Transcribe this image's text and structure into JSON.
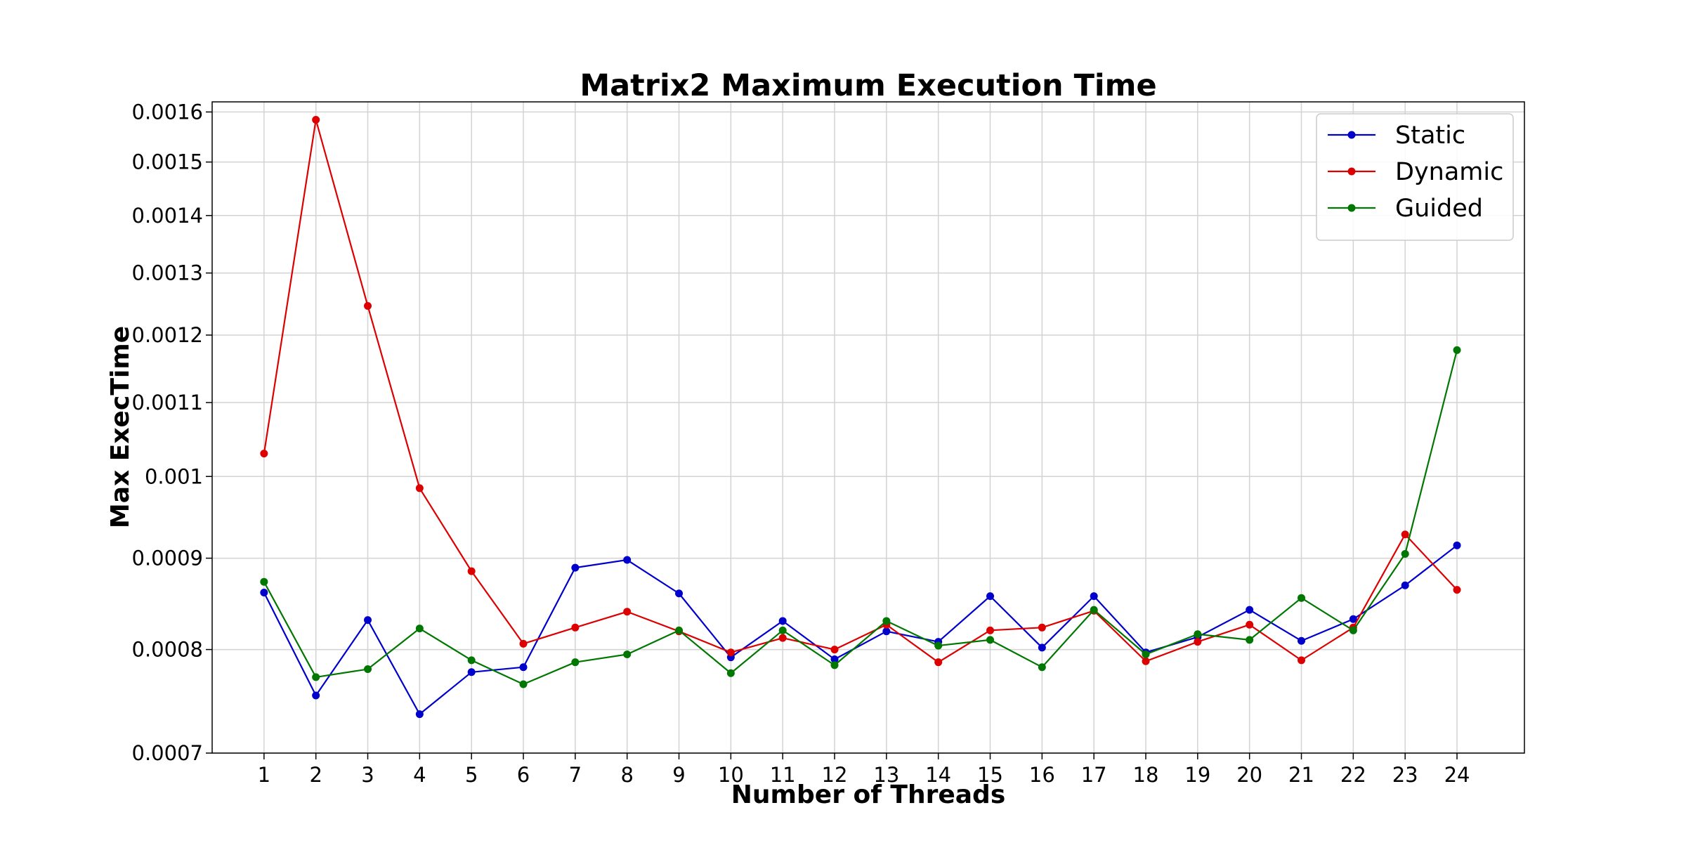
{
  "chart_data": {
    "type": "line",
    "title": "Matrix2 Maximum Execution Time",
    "xlabel": "Number of Threads",
    "ylabel": "Max ExecTime",
    "x": [
      1,
      2,
      3,
      4,
      5,
      6,
      7,
      8,
      9,
      10,
      11,
      12,
      13,
      14,
      15,
      16,
      17,
      18,
      19,
      20,
      21,
      22,
      23,
      24
    ],
    "y_scale": "log",
    "ylim": [
      0.0007,
      0.001621
    ],
    "y_ticks": [
      0.0007,
      0.0008,
      0.0009,
      0.001,
      0.0011,
      0.0012,
      0.0013,
      0.0014,
      0.0015,
      0.0016
    ],
    "y_tick_labels": [
      "0.0007",
      "0.0008",
      "0.0009",
      "0.001",
      "0.0011",
      "0.0012",
      "0.0013",
      "0.0014",
      "0.0015",
      "0.0016"
    ],
    "x_tick_labels": [
      "1",
      "2",
      "3",
      "4",
      "5",
      "6",
      "7",
      "8",
      "9",
      "10",
      "11",
      "12",
      "13",
      "14",
      "15",
      "16",
      "17",
      "18",
      "19",
      "20",
      "21",
      "22",
      "23",
      "24"
    ],
    "grid": true,
    "legend_position": "top-right",
    "series": [
      {
        "name": "Static",
        "color": "#0000cc",
        "values": [
          0.000861,
          0.000754,
          0.000831,
          0.000736,
          0.000777,
          0.000782,
          0.000889,
          0.000898,
          0.00086,
          0.000792,
          0.00083,
          0.00079,
          0.000819,
          0.000808,
          0.000857,
          0.000802,
          0.000857,
          0.000797,
          0.000813,
          0.000842,
          0.000809,
          0.000832,
          0.000869,
          0.000915
        ]
      },
      {
        "name": "Dynamic",
        "color": "#dd0000",
        "values": [
          0.00103,
          0.001584,
          0.001246,
          0.000985,
          0.000885,
          0.000806,
          0.000823,
          0.00084,
          0.000819,
          0.000797,
          0.000812,
          0.0008,
          0.000826,
          0.000787,
          0.00082,
          0.000823,
          0.000841,
          0.000788,
          0.000808,
          0.000826,
          0.000789,
          0.000823,
          0.000928,
          0.000864
        ]
      },
      {
        "name": "Guided",
        "color": "#007700",
        "values": [
          0.000873,
          0.000772,
          0.00078,
          0.000822,
          0.000789,
          0.000765,
          0.000787,
          0.000795,
          0.00082,
          0.000776,
          0.00082,
          0.000784,
          0.00083,
          0.000804,
          0.00081,
          0.000782,
          0.000842,
          0.000795,
          0.000816,
          0.00081,
          0.000855,
          0.00082,
          0.000905,
          0.001177
        ]
      }
    ]
  }
}
